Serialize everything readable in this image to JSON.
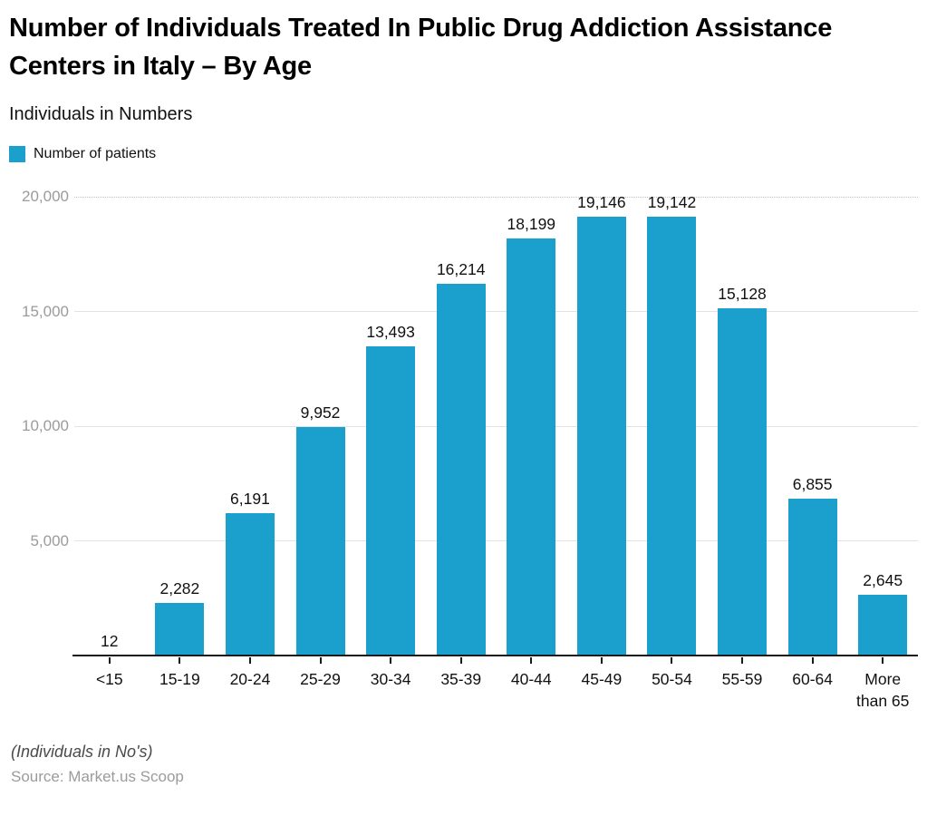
{
  "header": {
    "title": "Number of Individuals Treated In Public Drug Addiction Assistance Centers in Italy – By Age",
    "subtitle": "Individuals in Numbers"
  },
  "legend": {
    "items": [
      {
        "label": "Number of patients",
        "color": "#1ba0ce"
      }
    ]
  },
  "chart_data": {
    "type": "bar",
    "title": "Number of Individuals Treated In Public Drug Addiction Assistance Centers in Italy – By Age",
    "series_name": "Number of patients",
    "categories": [
      "<15",
      "15-19",
      "20-24",
      "25-29",
      "30-34",
      "35-39",
      "40-44",
      "45-49",
      "50-54",
      "55-59",
      "60-64",
      "More than 65"
    ],
    "values": [
      12,
      2282,
      6191,
      9952,
      13493,
      16214,
      18199,
      19146,
      19142,
      15128,
      6855,
      2645
    ],
    "value_labels": [
      "12",
      "2,282",
      "6,191",
      "9,952",
      "13,493",
      "16,214",
      "18,199",
      "19,146",
      "19,142",
      "15,128",
      "6,855",
      "2,645"
    ],
    "xlabel": "",
    "ylabel": "Individuals in Numbers",
    "ylim": [
      0,
      20000
    ],
    "yticks": [
      {
        "value": 5000,
        "label": "5,000"
      },
      {
        "value": 10000,
        "label": "10,000"
      },
      {
        "value": 15000,
        "label": "15,000"
      },
      {
        "value": 20000,
        "label": "20,000"
      }
    ],
    "grid": true,
    "legend_position": "top-left",
    "bar_color": "#1ba0ce"
  },
  "footer": {
    "note": "(Individuals in No's)",
    "source": "Source: Market.us Scoop"
  }
}
